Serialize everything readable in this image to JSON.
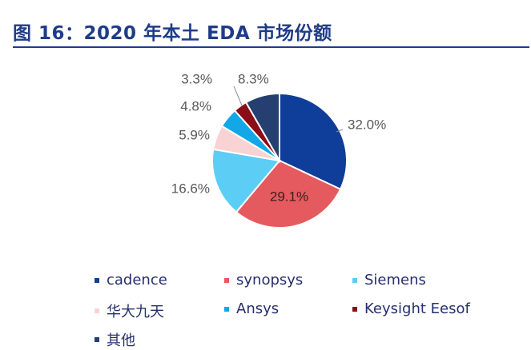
{
  "title": "图 16：2020 年本土 EDA 市场份额",
  "chart_data": {
    "type": "pie",
    "title": "",
    "categories": [
      "cadence",
      "synopsys",
      "Siemens",
      "华大九天",
      "Ansys",
      "Keysight Eesof",
      "其他"
    ],
    "values": [
      32.0,
      29.1,
      16.6,
      5.9,
      4.8,
      3.3,
      8.3
    ],
    "value_labels": [
      "32.0%",
      "29.1%",
      "16.6%",
      "5.9%",
      "4.8%",
      "3.3%",
      "8.3%"
    ],
    "colors": [
      "#0E3E99",
      "#E55A5E",
      "#5CCEF6",
      "#F9D3D4",
      "#12A7E6",
      "#8A0D17",
      "#243F70"
    ],
    "legend_position": "bottom"
  }
}
